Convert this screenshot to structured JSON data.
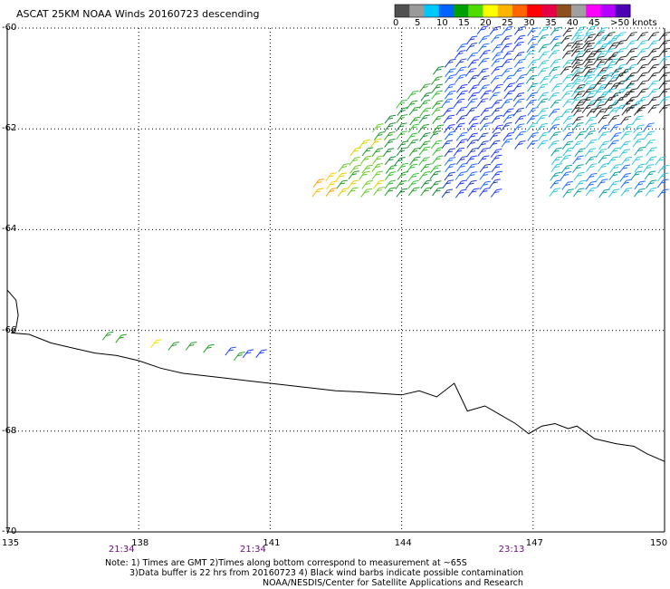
{
  "title": "ASCAT 25KM NOAA Winds 20160723 descending",
  "legend": {
    "labels": [
      "0",
      "5",
      "10",
      "15",
      "20",
      "25",
      "30",
      "35",
      "40",
      "45",
      ">50 knots"
    ],
    "colors": [
      "#505050",
      "#9a9a9a",
      "#00c8ff",
      "#0064ff",
      "#00a000",
      "#50dc00",
      "#ffff00",
      "#ffb400",
      "#ff6400",
      "#ff0000",
      "#e60046",
      "#8c501e",
      "#a0a0a0",
      "#ff00ff",
      "#b400ff",
      "#5000b4"
    ]
  },
  "axes": {
    "lat_labels": [
      "-60",
      "-62",
      "-64",
      "-66",
      "-68",
      "-70"
    ],
    "lat_values": [
      -60,
      -62,
      -64,
      -66,
      -68,
      -70
    ],
    "lon_labels": [
      "135",
      "138",
      "141",
      "144",
      "147",
      "150"
    ],
    "lon_values": [
      135,
      138,
      141,
      144,
      147,
      150
    ],
    "lon_range": [
      135,
      150
    ],
    "lat_range": [
      -60,
      -70
    ]
  },
  "time_labels": [
    {
      "text": "21:34",
      "lon": 137.6
    },
    {
      "text": "21:34",
      "lon": 140.6
    },
    {
      "text": "23:13",
      "lon": 146.5
    }
  ],
  "notes": [
    "Note: 1) Times are GMT 2)Times along bottom correspond to measurement at ~65S",
    "3)Data buffer is 22 hrs from 20160723 4) Black wind barbs indicate possible contamination",
    "NOAA/NESDIS/Center for Satellite Applications and Research"
  ],
  "coastline": [
    [
      135.0,
      -65.2
    ],
    [
      135.2,
      -65.4
    ],
    [
      135.25,
      -65.7
    ],
    [
      135.2,
      -65.95
    ],
    [
      135.1,
      -66.05
    ],
    [
      135.5,
      -66.08
    ],
    [
      136.0,
      -66.25
    ],
    [
      136.5,
      -66.35
    ],
    [
      137.0,
      -66.45
    ],
    [
      137.5,
      -66.5
    ],
    [
      138.0,
      -66.6
    ],
    [
      138.5,
      -66.75
    ],
    [
      139.0,
      -66.85
    ],
    [
      139.5,
      -66.9
    ],
    [
      140.0,
      -66.95
    ],
    [
      140.5,
      -67.0
    ],
    [
      141.0,
      -67.05
    ],
    [
      141.5,
      -67.1
    ],
    [
      142.0,
      -67.15
    ],
    [
      142.5,
      -67.2
    ],
    [
      143.0,
      -67.22
    ],
    [
      143.5,
      -67.25
    ],
    [
      144.0,
      -67.28
    ],
    [
      144.4,
      -67.2
    ],
    [
      144.8,
      -67.32
    ],
    [
      145.2,
      -67.05
    ],
    [
      145.5,
      -67.6
    ],
    [
      145.9,
      -67.5
    ],
    [
      146.2,
      -67.65
    ],
    [
      146.6,
      -67.85
    ],
    [
      146.9,
      -68.05
    ],
    [
      147.2,
      -67.9
    ],
    [
      147.5,
      -67.85
    ],
    [
      147.8,
      -67.95
    ],
    [
      148.0,
      -67.9
    ],
    [
      148.4,
      -68.15
    ],
    [
      148.9,
      -68.25
    ],
    [
      149.3,
      -68.3
    ],
    [
      149.6,
      -68.45
    ],
    [
      150.0,
      -68.6
    ]
  ]
}
